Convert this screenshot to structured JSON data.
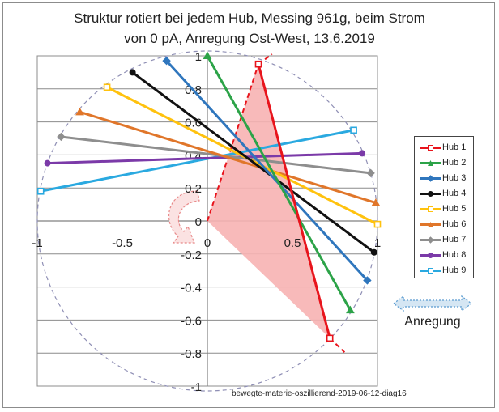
{
  "title": {
    "line1": "Struktur rotiert bei jedem Hub, Messing 961g, beim Strom",
    "line2": "von  0 pA, Anregung Ost-West, 13.6.2019"
  },
  "excitation_label": "Anregung",
  "footnote": "bewegte-materie-oszillierend-2019-06-12-diag16",
  "chart_data": {
    "type": "scatter",
    "x_ticks": [
      "-1",
      "-0.5",
      "0",
      "0.5",
      "1"
    ],
    "y_ticks": [
      "1",
      "0.8",
      "0.6",
      "0.4",
      "0.2",
      "0",
      "-0.2",
      "-0.4",
      "-0.6",
      "-0.8",
      "-1"
    ],
    "xlim": [
      -1,
      1
    ],
    "ylim": [
      -1,
      1
    ],
    "grid": "horizontal",
    "unit_circle": true,
    "legend_position": "right",
    "series": [
      {
        "name": "Hub 1",
        "color": "#e8141c",
        "marker": "square",
        "points": [
          [
            0.3,
            0.95
          ],
          [
            0.72,
            -0.71
          ]
        ]
      },
      {
        "name": "Hub 2",
        "color": "#2ca348",
        "marker": "triangle",
        "points": [
          [
            0.0,
            1.0
          ],
          [
            0.84,
            -0.54
          ]
        ]
      },
      {
        "name": "Hub 3",
        "color": "#2f76bd",
        "marker": "diamond",
        "points": [
          [
            -0.24,
            0.97
          ],
          [
            0.94,
            -0.36
          ]
        ]
      },
      {
        "name": "Hub 4",
        "color": "#111111",
        "marker": "circle",
        "points": [
          [
            -0.44,
            0.9
          ],
          [
            0.98,
            -0.19
          ]
        ]
      },
      {
        "name": "Hub 5",
        "color": "#ffc20e",
        "marker": "square",
        "points": [
          [
            -0.59,
            0.81
          ],
          [
            1.0,
            -0.02
          ]
        ]
      },
      {
        "name": "Hub 6",
        "color": "#e0762a",
        "marker": "triangle",
        "points": [
          [
            -0.75,
            0.66
          ],
          [
            0.99,
            0.11
          ]
        ]
      },
      {
        "name": "Hub 7",
        "color": "#8e8e8e",
        "marker": "diamond",
        "points": [
          [
            -0.86,
            0.51
          ],
          [
            0.96,
            0.29
          ]
        ]
      },
      {
        "name": "Hub 8",
        "color": "#7b3aa8",
        "marker": "circle",
        "points": [
          [
            -0.94,
            0.35
          ],
          [
            0.91,
            0.41
          ]
        ]
      },
      {
        "name": "Hub 9",
        "color": "#2aa9e0",
        "marker": "square",
        "points": [
          [
            -0.98,
            0.18
          ],
          [
            0.86,
            0.55
          ]
        ]
      }
    ],
    "rotation_triangle": {
      "fill": "#f7b3b3",
      "edge_color": "#e8141c",
      "vertices": [
        [
          0.0,
          0.0
        ],
        [
          0.3,
          0.95
        ],
        [
          0.72,
          -0.71
        ]
      ]
    }
  },
  "colors": {
    "grid": "#8c8c8c",
    "axis": "#808080",
    "circle": "#8f8fb5",
    "rotation_arrow_fill": "#fbe2e2",
    "rotation_arrow_stroke": "#e88a8a",
    "excitation_arrow_fill": "#d5e6f3",
    "excitation_arrow_stroke": "#5a9bd0"
  },
  "icons": {
    "rotation": "curved-rotation-arrow-icon",
    "excitation": "double-headed-arrow-icon"
  }
}
